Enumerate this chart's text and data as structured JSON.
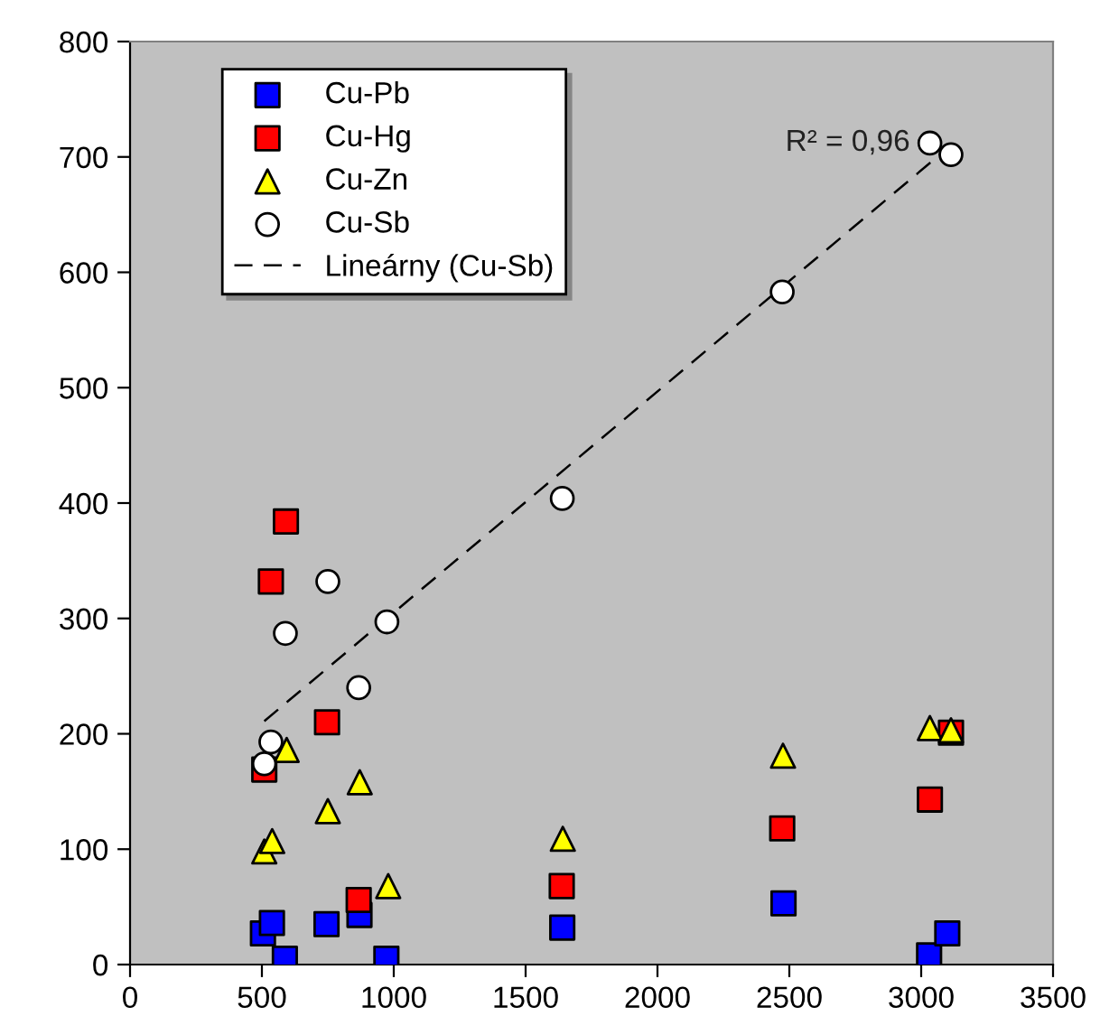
{
  "chart_data": {
    "type": "scatter",
    "series": [
      {
        "name": "Cu-Pb",
        "color": "#0000ff",
        "marker": "square",
        "x": [
          504,
          538,
          587,
          745,
          870,
          972,
          1639,
          2478,
          3030,
          3099
        ],
        "values": [
          27,
          36,
          5,
          35,
          43,
          5,
          32,
          53,
          8,
          27
        ]
      },
      {
        "name": "Cu-Hg",
        "color": "#ff0000",
        "marker": "square",
        "x": [
          509,
          534,
          591,
          747,
          867,
          1637,
          2473,
          3033,
          3113
        ],
        "values": [
          169,
          332,
          384,
          210,
          56,
          68,
          118,
          143,
          201
        ]
      },
      {
        "name": "Cu-Zn",
        "color": "#ffff00",
        "marker": "triangle",
        "x": [
          509,
          539,
          594,
          750,
          871,
          979,
          1641,
          2476,
          3033,
          3113
        ],
        "values": [
          98,
          107,
          186,
          133,
          158,
          68,
          109,
          181,
          205,
          203
        ]
      },
      {
        "name": "Cu-Sb",
        "color": "#ffffff",
        "marker": "circle",
        "x": [
          509,
          534,
          589,
          750,
          867,
          974,
          1639,
          2473,
          3033,
          3113
        ],
        "values": [
          174,
          193,
          287,
          332,
          240,
          297,
          404,
          583,
          712,
          702
        ]
      },
      {
        "name": "Lineárny (Cu-Sb)",
        "type": "line",
        "color": "#000000",
        "line_style": "dashed",
        "marker": "none",
        "x": [
          509,
          3113
        ],
        "values": [
          211,
          710
        ]
      }
    ],
    "annotations": [
      "R² = 0,96"
    ],
    "xlim": [
      0,
      3500
    ],
    "xticks": [
      0,
      500,
      1000,
      1500,
      2000,
      2500,
      3000,
      3500
    ],
    "ylim": [
      0,
      800
    ],
    "yticks": [
      0,
      100,
      200,
      300,
      400,
      500,
      600,
      700,
      800
    ],
    "grid": false,
    "legend": "top left"
  }
}
